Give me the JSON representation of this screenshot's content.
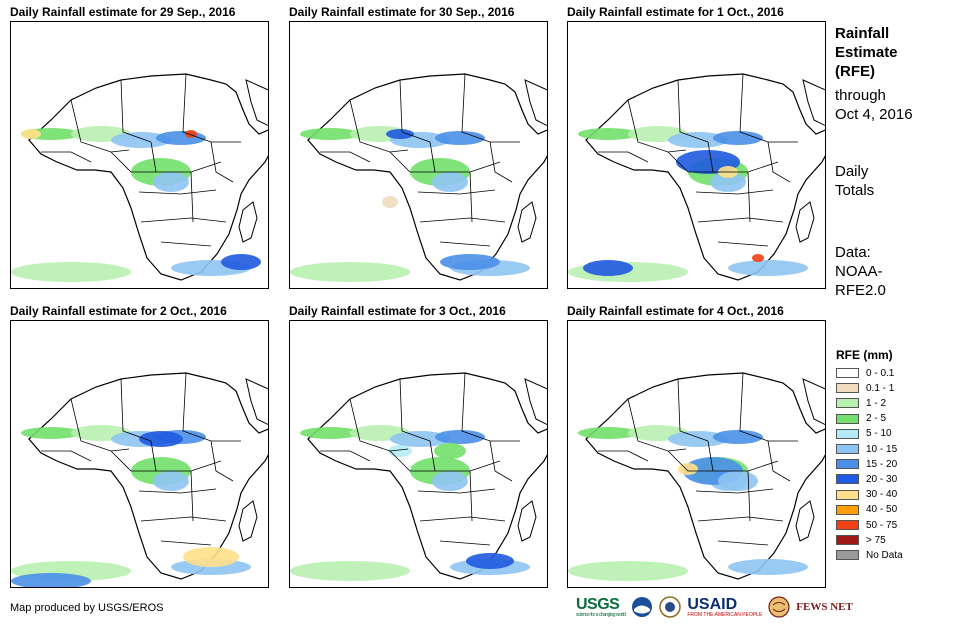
{
  "panels": [
    {
      "title": "Daily Rainfall estimate for 29 Sep., 2016"
    },
    {
      "title": "Daily Rainfall estimate for 30 Sep., 2016"
    },
    {
      "title": "Daily Rainfall estimate for 1 Oct., 2016"
    },
    {
      "title": "Daily Rainfall estimate for 2 Oct., 2016"
    },
    {
      "title": "Daily Rainfall estimate for 3 Oct., 2016"
    },
    {
      "title": "Daily Rainfall estimate for 4 Oct., 2016"
    }
  ],
  "side": {
    "heading_lines": [
      "Rainfall",
      "Estimate",
      "(RFE)"
    ],
    "through_lines": [
      "through",
      "Oct 4, 2016"
    ],
    "daily_lines": [
      "Daily",
      "Totals"
    ],
    "data_lines": [
      "Data:",
      "NOAA-",
      "RFE2.0"
    ]
  },
  "legend": {
    "title": "RFE (mm)",
    "items": [
      {
        "label": "0 - 0.1",
        "color": "#ffffff"
      },
      {
        "label": "0.1 - 1",
        "color": "#f0dcc0"
      },
      {
        "label": "1 - 2",
        "color": "#b8f0b0"
      },
      {
        "label": "2 - 5",
        "color": "#72e06a"
      },
      {
        "label": "5 - 10",
        "color": "#b4ecf5"
      },
      {
        "label": "10 - 15",
        "color": "#8ec4f2"
      },
      {
        "label": "15 - 20",
        "color": "#4a90e8"
      },
      {
        "label": "20 - 30",
        "color": "#1f5ae0"
      },
      {
        "label": "30 - 40",
        "color": "#ffe088"
      },
      {
        "label": "40 - 50",
        "color": "#ffa000"
      },
      {
        "label": "50 - 75",
        "color": "#f04010"
      },
      {
        "label": "> 75",
        "color": "#a01818"
      },
      {
        "label": "No Data",
        "color": "#9a9a9a"
      }
    ]
  },
  "credit": "Map produced by USGS/EROS",
  "logos": {
    "usgs": "USGS",
    "usgs_tagline": "science for a changing world",
    "usaid": "USAID",
    "usaid_tagline": "FROM THE AMERICAN PEOPLE",
    "fews": "FEWS NET"
  }
}
